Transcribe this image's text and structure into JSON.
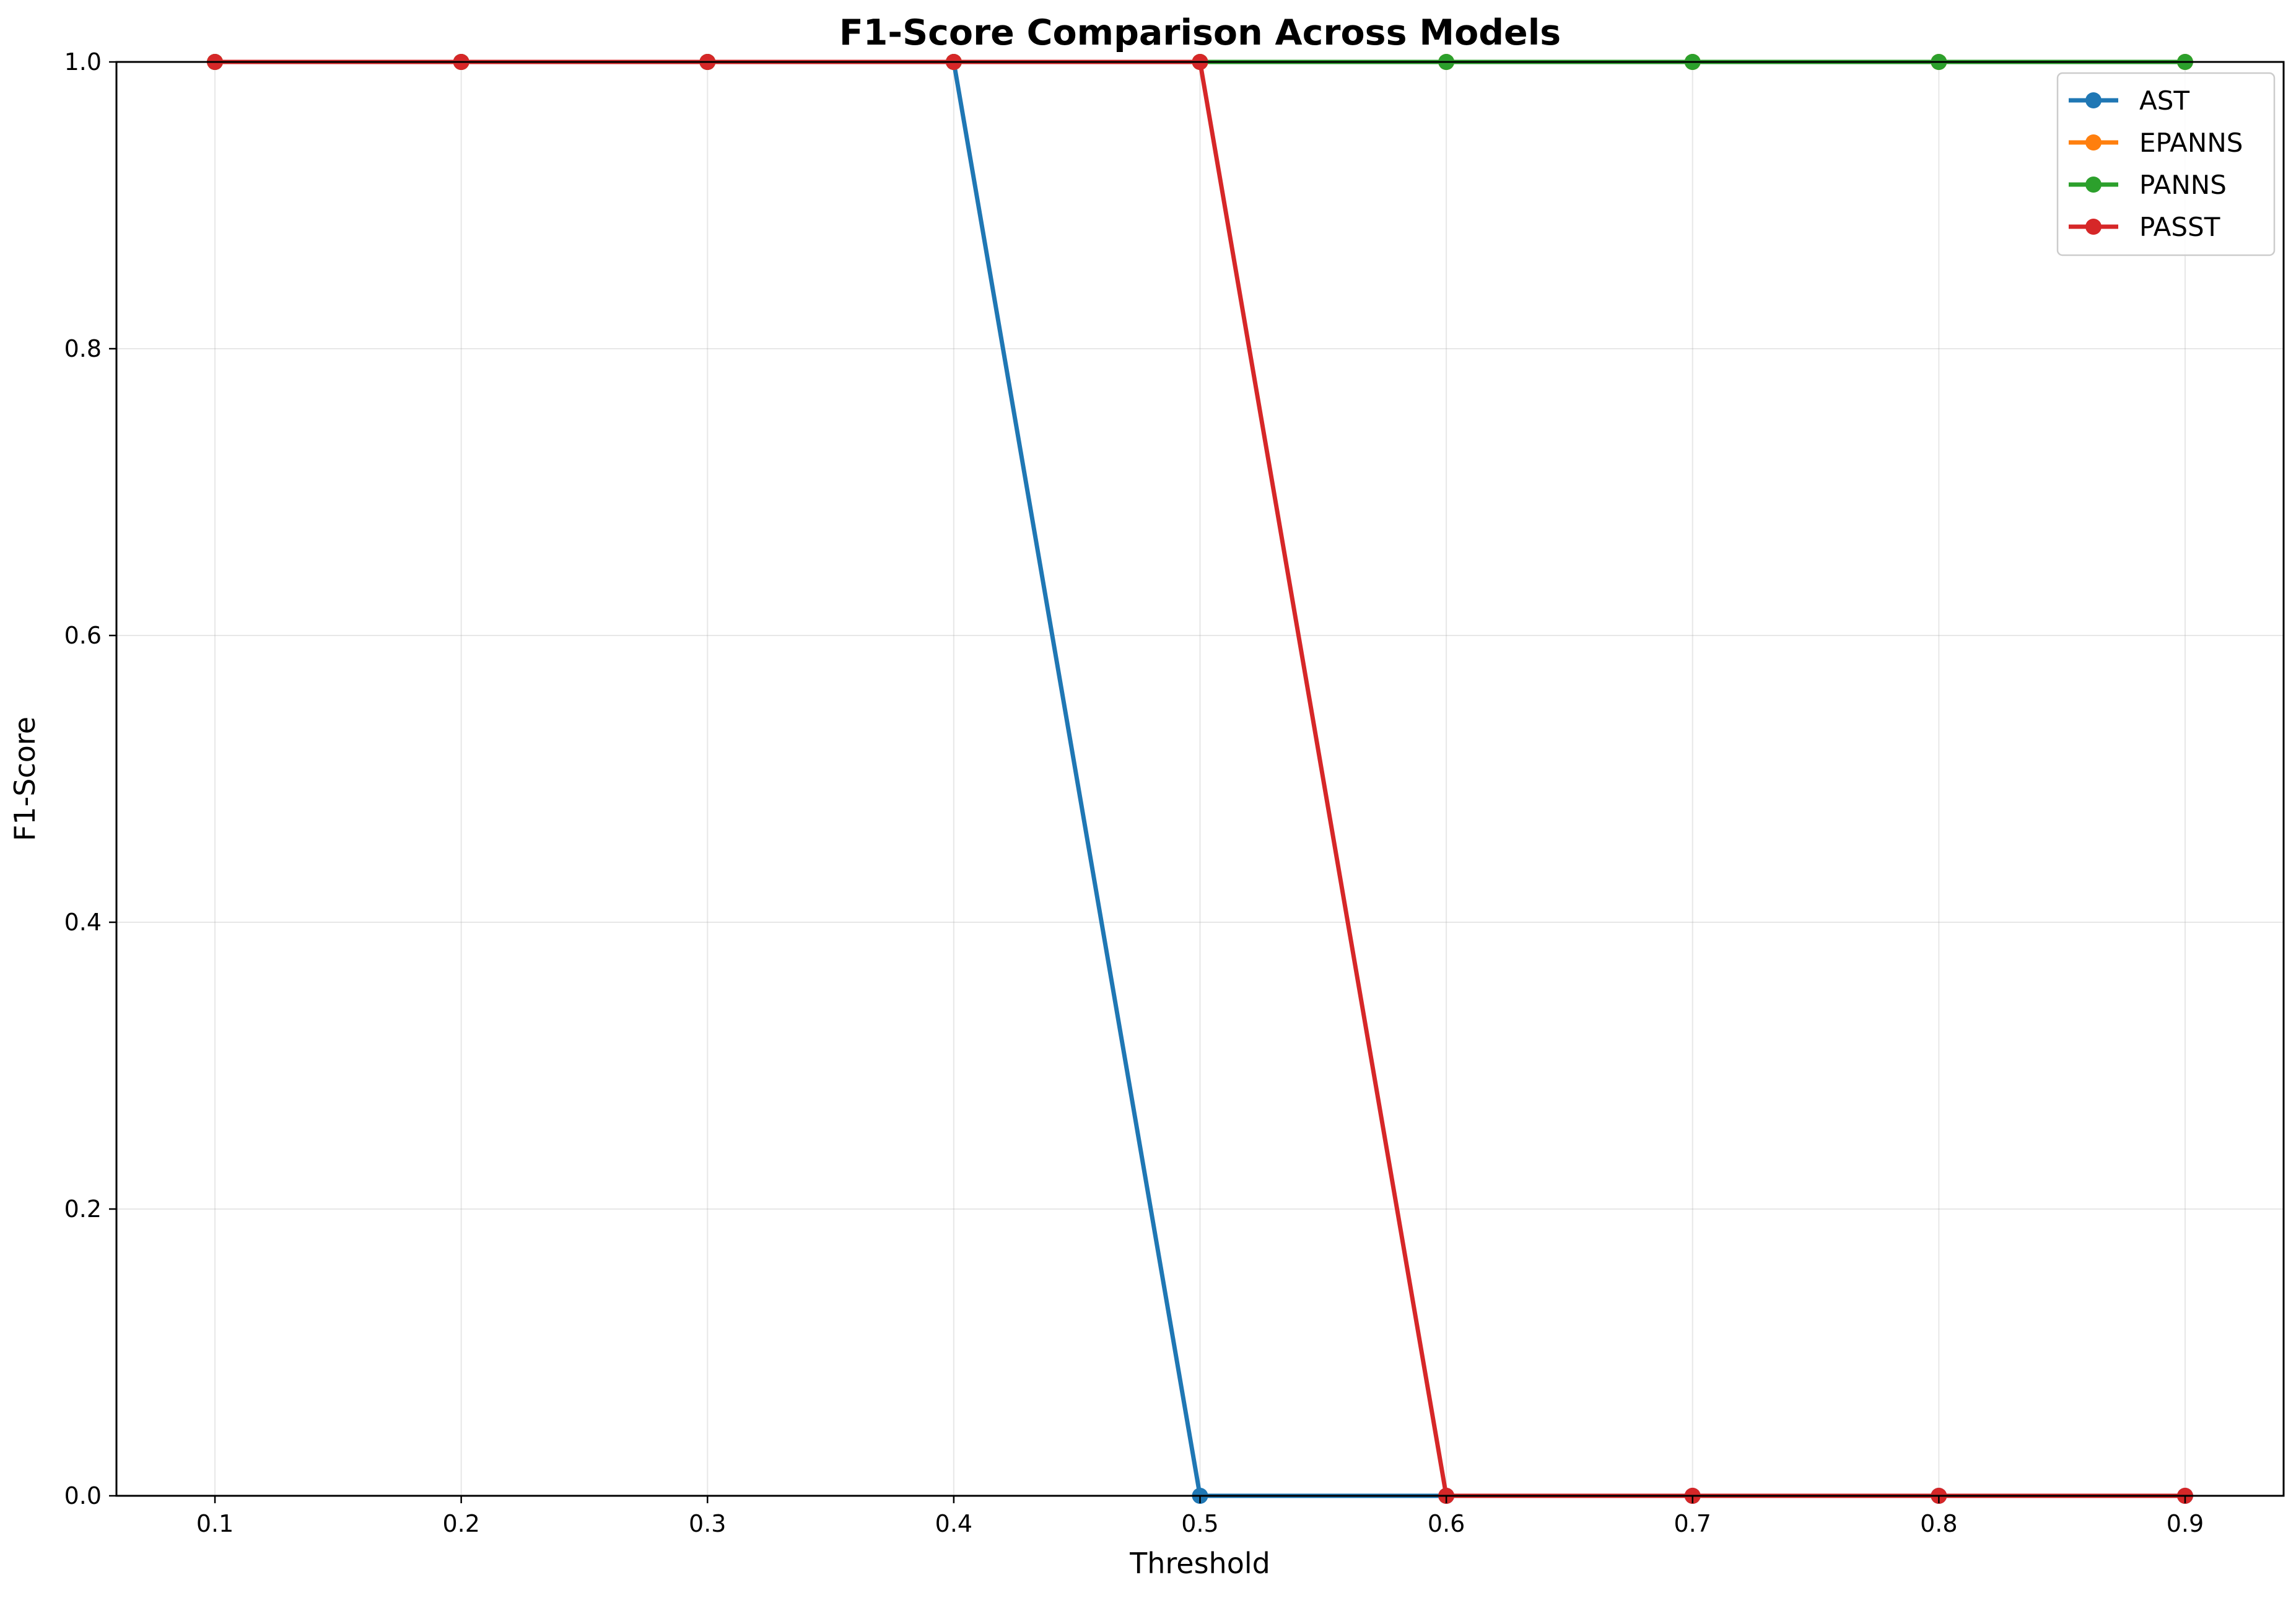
{
  "chart_data": {
    "type": "line",
    "title": "F1-Score Comparison Across Models",
    "xlabel": "Threshold",
    "ylabel": "F1-Score",
    "x": [
      0.1,
      0.2,
      0.3,
      0.4,
      0.5,
      0.6,
      0.7,
      0.8,
      0.9
    ],
    "x_tick_labels": [
      "0.1",
      "0.2",
      "0.3",
      "0.4",
      "0.5",
      "0.6",
      "0.7",
      "0.8",
      "0.9"
    ],
    "xlim": [
      0.06,
      0.94
    ],
    "ylim": [
      0,
      1
    ],
    "y_ticks": [
      0.0,
      0.2,
      0.4,
      0.6,
      0.8,
      1.0
    ],
    "y_tick_labels": [
      "0.0",
      "0.2",
      "0.4",
      "0.6",
      "0.8",
      "1.0"
    ],
    "grid": true,
    "legend_position": "top-right",
    "series": [
      {
        "name": "AST",
        "color": "#1f77b4",
        "values": [
          1,
          1,
          1,
          1,
          0,
          0,
          0,
          0,
          0
        ]
      },
      {
        "name": "EPANNS",
        "color": "#ff7f0e",
        "values": [
          1,
          1,
          1,
          1,
          1,
          1,
          1,
          1,
          1
        ]
      },
      {
        "name": "PANNS",
        "color": "#2ca02c",
        "values": [
          1,
          1,
          1,
          1,
          1,
          1,
          1,
          1,
          1
        ]
      },
      {
        "name": "PASST",
        "color": "#d62728",
        "values": [
          1,
          1,
          1,
          1,
          1,
          0,
          0,
          0,
          0
        ]
      }
    ]
  }
}
